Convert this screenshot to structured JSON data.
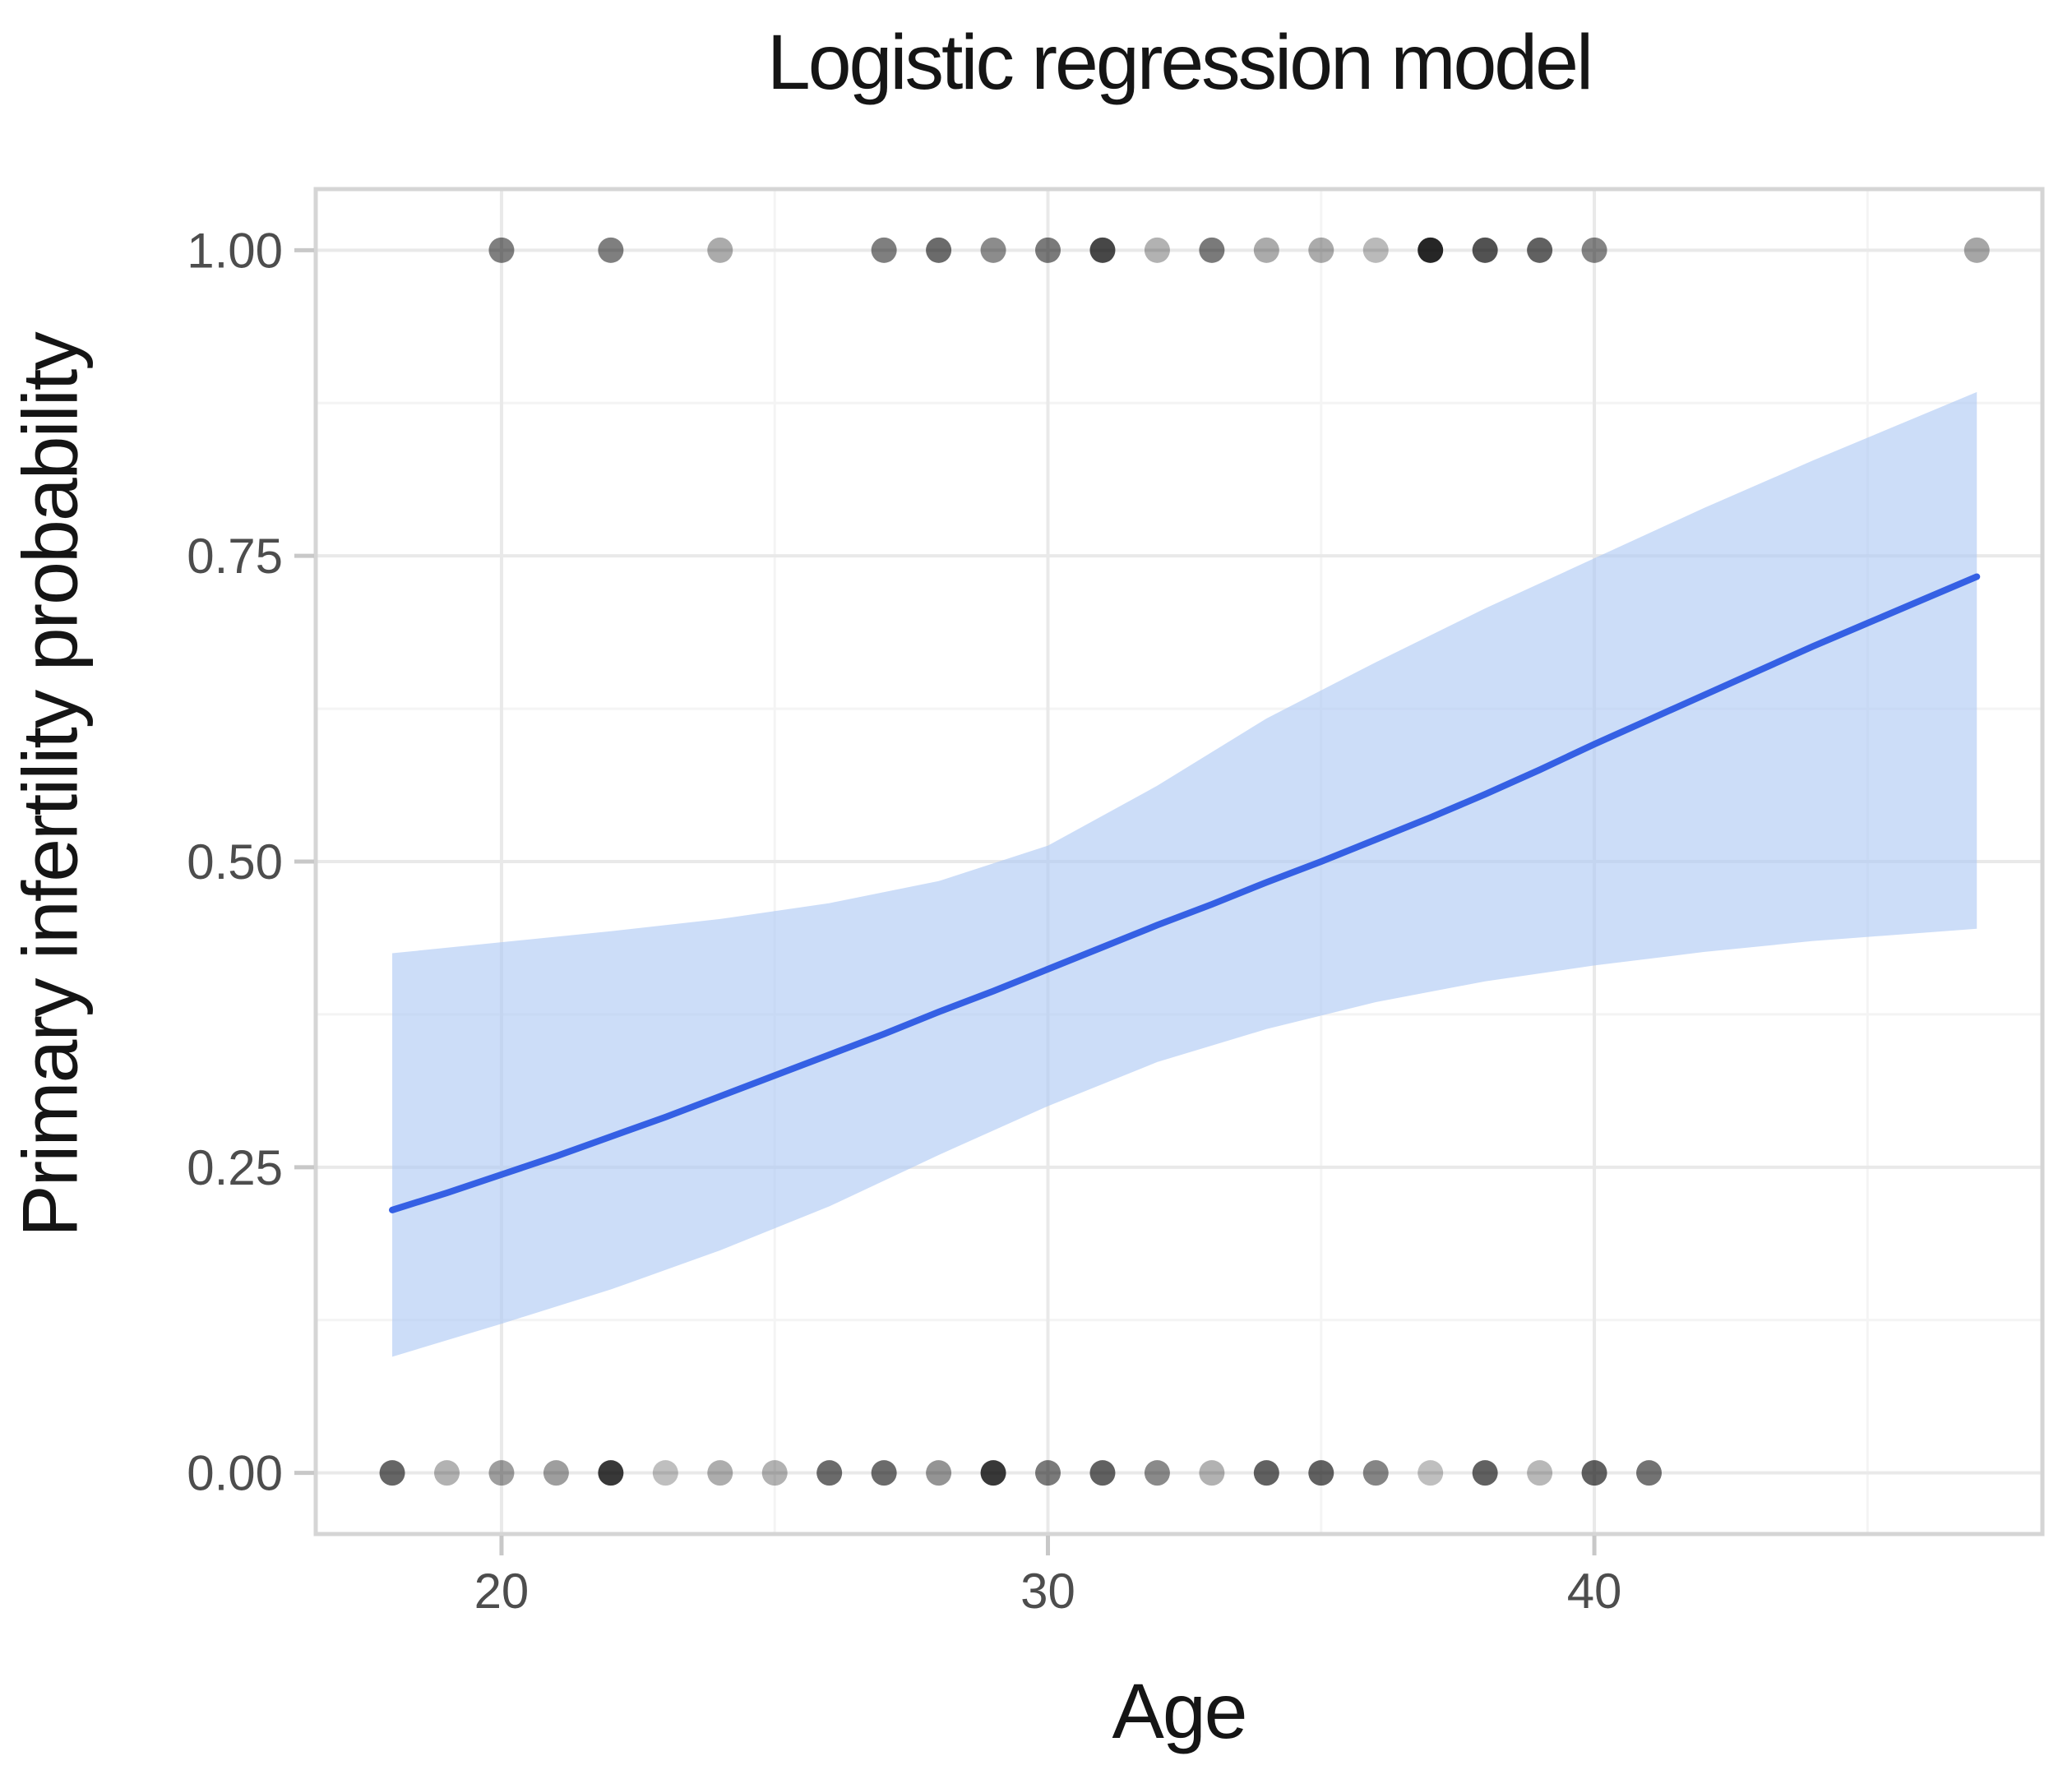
{
  "title": "Logistic regression model",
  "x_axis": {
    "label": "Age",
    "tick_labels": [
      "20",
      "30",
      "40"
    ],
    "tick_values": [
      20,
      30,
      40
    ],
    "minor_tick_values": [
      25,
      35,
      45
    ],
    "domain": [
      16.6,
      48.2
    ]
  },
  "y_axis": {
    "label": "Primary infertility probability",
    "tick_labels": [
      "0.00",
      "0.25",
      "0.50",
      "0.75",
      "1.00"
    ],
    "tick_values": [
      0,
      0.25,
      0.5,
      0.75,
      1.0
    ],
    "minor_tick_values": [
      0.125,
      0.375,
      0.625,
      0.875
    ],
    "domain": [
      -0.05,
      1.05
    ]
  },
  "colors": {
    "fit_line": "#3560e4",
    "ci_ribbon": "rgba(173,200,243,0.62)",
    "point": "#000000",
    "grid_major": "#e9e9e9",
    "grid_minor": "#f4f4f4",
    "panel_border": "#d5d5d5",
    "tick_mark": "#c8c8c8",
    "tick_text": "#4d4d4d",
    "title_text": "#151515"
  },
  "chart_data": {
    "type": "scatter",
    "subtype": "logistic regression fit with 95% CI ribbon and binary outcome points",
    "title": "Logistic regression model",
    "xlabel": "Age",
    "ylabel": "Primary infertility probability",
    "xlim": [
      16.6,
      48.2
    ],
    "ylim": [
      -0.05,
      1.05
    ],
    "grid": "on",
    "legend": "none",
    "series": [
      {
        "name": "observations_outcome_1",
        "type": "scatter",
        "y": 1.0,
        "points": [
          {
            "age": 20,
            "opacity": 0.5
          },
          {
            "age": 22,
            "opacity": 0.5
          },
          {
            "age": 24,
            "opacity": 0.33
          },
          {
            "age": 27,
            "opacity": 0.5
          },
          {
            "age": 28,
            "opacity": 0.58
          },
          {
            "age": 29,
            "opacity": 0.45
          },
          {
            "age": 30,
            "opacity": 0.52
          },
          {
            "age": 31,
            "opacity": 0.72
          },
          {
            "age": 32,
            "opacity": 0.3
          },
          {
            "age": 33,
            "opacity": 0.52
          },
          {
            "age": 34,
            "opacity": 0.33
          },
          {
            "age": 35,
            "opacity": 0.33
          },
          {
            "age": 36,
            "opacity": 0.27
          },
          {
            "age": 37,
            "opacity": 0.85
          },
          {
            "age": 38,
            "opacity": 0.68
          },
          {
            "age": 39,
            "opacity": 0.62
          },
          {
            "age": 40,
            "opacity": 0.48
          },
          {
            "age": 47,
            "opacity": 0.35
          }
        ]
      },
      {
        "name": "observations_outcome_0",
        "type": "scatter",
        "y": 0.0,
        "points": [
          {
            "age": 18,
            "opacity": 0.6
          },
          {
            "age": 19,
            "opacity": 0.3
          },
          {
            "age": 20,
            "opacity": 0.38
          },
          {
            "age": 21,
            "opacity": 0.38
          },
          {
            "age": 22,
            "opacity": 0.78
          },
          {
            "age": 23,
            "opacity": 0.25
          },
          {
            "age": 24,
            "opacity": 0.32
          },
          {
            "age": 25,
            "opacity": 0.3
          },
          {
            "age": 26,
            "opacity": 0.58
          },
          {
            "age": 27,
            "opacity": 0.58
          },
          {
            "age": 28,
            "opacity": 0.42
          },
          {
            "age": 29,
            "opacity": 0.78
          },
          {
            "age": 30,
            "opacity": 0.52
          },
          {
            "age": 31,
            "opacity": 0.62
          },
          {
            "age": 32,
            "opacity": 0.46
          },
          {
            "age": 33,
            "opacity": 0.3
          },
          {
            "age": 34,
            "opacity": 0.62
          },
          {
            "age": 35,
            "opacity": 0.62
          },
          {
            "age": 36,
            "opacity": 0.48
          },
          {
            "age": 37,
            "opacity": 0.25
          },
          {
            "age": 38,
            "opacity": 0.62
          },
          {
            "age": 39,
            "opacity": 0.28
          },
          {
            "age": 40,
            "opacity": 0.62
          },
          {
            "age": 41,
            "opacity": 0.55
          }
        ]
      },
      {
        "name": "fitted_probability",
        "type": "line",
        "x": [
          18,
          19,
          20,
          21,
          22,
          23,
          24,
          25,
          26,
          27,
          28,
          29,
          30,
          31,
          32,
          33,
          34,
          35,
          36,
          37,
          38,
          39,
          40,
          41,
          42,
          43,
          44,
          45,
          46,
          47
        ],
        "y": [
          0.215,
          0.229,
          0.244,
          0.259,
          0.275,
          0.291,
          0.308,
          0.325,
          0.342,
          0.359,
          0.377,
          0.394,
          0.412,
          0.43,
          0.448,
          0.465,
          0.483,
          0.5,
          0.518,
          0.536,
          0.555,
          0.575,
          0.596,
          0.616,
          0.636,
          0.656,
          0.676,
          0.695,
          0.714,
          0.733
        ]
      },
      {
        "name": "confidence_ribbon_95",
        "type": "area",
        "x": [
          18,
          20,
          22,
          24,
          26,
          28,
          30,
          32,
          34,
          36,
          38,
          40,
          42,
          44,
          47
        ],
        "lower": [
          0.095,
          0.122,
          0.15,
          0.182,
          0.218,
          0.26,
          0.3,
          0.336,
          0.363,
          0.385,
          0.402,
          0.415,
          0.426,
          0.435,
          0.445
        ],
        "upper": [
          0.425,
          0.434,
          0.443,
          0.453,
          0.466,
          0.484,
          0.513,
          0.562,
          0.617,
          0.663,
          0.707,
          0.748,
          0.789,
          0.828,
          0.884
        ]
      }
    ]
  }
}
